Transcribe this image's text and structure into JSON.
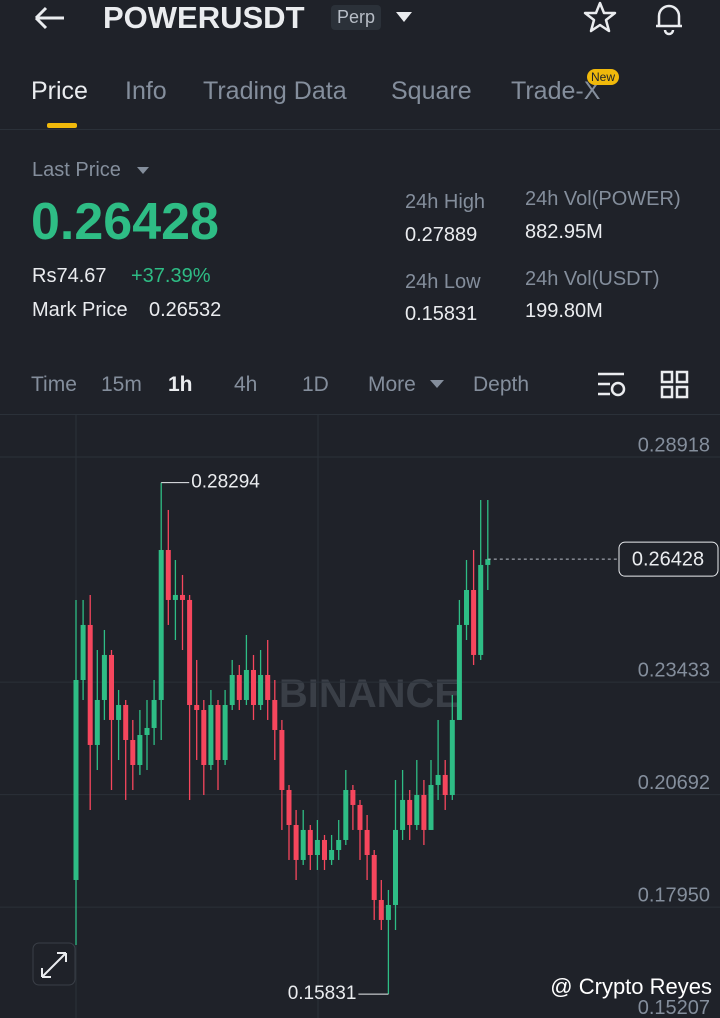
{
  "header": {
    "title": "POWERUSDT",
    "badge": "Perp"
  },
  "tabs": [
    "Price",
    "Info",
    "Trading Data",
    "Square",
    "Trade-X"
  ],
  "new_badge": "New",
  "stats": {
    "last_price_label": "Last Price",
    "last_price": "0.26428",
    "fiat_price": "Rs74.67",
    "change": "+37.39%",
    "mark_price_label": "Mark Price",
    "mark_price": "0.26532",
    "high_label": "24h High",
    "high": "0.27889",
    "low_label": "24h Low",
    "low": "0.15831",
    "vol_base_label": "24h Vol(POWER)",
    "vol_base": "882.95M",
    "vol_quote_label": "24h Vol(USDT)",
    "vol_quote": "199.80M"
  },
  "intervals": [
    "Time",
    "15m",
    "1h",
    "4h",
    "1D",
    "More",
    "Depth"
  ],
  "watermark": "BINANCE",
  "credit": "@ Crypto Reyes",
  "chart_data": {
    "type": "candlestick",
    "open": [
      0.18611,
      0.23484,
      0.24825,
      0.21901,
      0.22997,
      0.24094,
      0.2251,
      0.22875,
      0.22022,
      0.21413,
      0.22144,
      0.22315,
      0.22997,
      0.26652,
      0.25434,
      0.25556,
      0.25434,
      0.22875,
      0.22753,
      0.21413,
      0.22875,
      0.21535,
      0.22875,
      0.23606,
      0.22997,
      0.23728,
      0.22875,
      0.23606,
      0.22997,
      0.22266,
      0.20804,
      0.19951,
      0.19099,
      0.1983,
      0.1922,
      0.19586,
      0.19099,
      0.19342,
      0.19586,
      0.20804,
      0.20439,
      0.1983,
      0.1922,
      0.18124,
      0.17637,
      0.18002,
      0.1983,
      0.20561,
      0.19951,
      0.20682,
      0.1983,
      0.20926,
      0.2117,
      0.20682,
      0.2251,
      0.24825,
      0.25677,
      0.24094,
      0.26287
    ],
    "high": [
      0.25434,
      0.25434,
      0.25556,
      0.24215,
      0.24703,
      0.24215,
      0.23241,
      0.22997,
      0.2251,
      0.22753,
      0.22997,
      0.23484,
      0.28294,
      0.27627,
      0.26408,
      0.26043,
      0.25556,
      0.23972,
      0.22997,
      0.23241,
      0.22997,
      0.23241,
      0.23972,
      0.2385,
      0.24581,
      0.24094,
      0.24215,
      0.24459,
      0.23484,
      0.2251,
      0.20926,
      0.20317,
      0.20317,
      0.19951,
      0.20073,
      0.19708,
      0.19708,
      0.20073,
      0.21291,
      0.20926,
      0.20561,
      0.20195,
      0.19342,
      0.18611,
      0.18368,
      0.21048,
      0.21291,
      0.20804,
      0.21535,
      0.21048,
      0.21535,
      0.2251,
      0.21535,
      0.23119,
      0.25434,
      0.26408,
      0.26652,
      0.2787,
      0.2787
    ],
    "low": [
      0.17027,
      0.22997,
      0.20317,
      0.21291,
      0.2251,
      0.20804,
      0.21535,
      0.20561,
      0.20804,
      0.2117,
      0.21291,
      0.21901,
      0.22022,
      0.24825,
      0.24459,
      0.24215,
      0.20561,
      0.21535,
      0.20682,
      0.21291,
      0.20804,
      0.21413,
      0.22753,
      0.22753,
      0.22875,
      0.2251,
      0.22753,
      0.2251,
      0.21535,
      0.1983,
      0.19099,
      0.18611,
      0.18977,
      0.18855,
      0.18855,
      0.18855,
      0.18977,
      0.19099,
      0.19464,
      0.1983,
      0.19099,
      0.18611,
      0.17637,
      0.17393,
      0.15831,
      0.17393,
      0.19586,
      0.19586,
      0.1983,
      0.19464,
      0.1983,
      0.20561,
      0.20317,
      0.20561,
      0.2251,
      0.24459,
      0.2385,
      0.23972,
      0.25677
    ],
    "close": [
      0.23484,
      0.24825,
      0.21901,
      0.22997,
      0.24094,
      0.2251,
      0.22875,
      0.22022,
      0.21413,
      0.22144,
      0.22315,
      0.22997,
      0.26652,
      0.25434,
      0.25556,
      0.25434,
      0.22875,
      0.22753,
      0.21413,
      0.22875,
      0.21535,
      0.22875,
      0.23606,
      0.22997,
      0.23728,
      0.22875,
      0.23606,
      0.22997,
      0.22266,
      0.20804,
      0.19951,
      0.19099,
      0.1983,
      0.1922,
      0.19586,
      0.19099,
      0.19342,
      0.19586,
      0.20804,
      0.20439,
      0.1983,
      0.1922,
      0.18124,
      0.17637,
      0.18002,
      0.1983,
      0.20561,
      0.19951,
      0.20682,
      0.1983,
      0.20926,
      0.2117,
      0.20682,
      0.2251,
      0.24825,
      0.25677,
      0.24094,
      0.26287,
      0.26428
    ],
    "up_color": "#2ebd85",
    "down_color": "#f6465d",
    "ylim": [
      0.14956,
      0.29941
    ],
    "yticks": [
      0.28918,
      0.23433,
      0.20692,
      {
        "value": 0.1795,
        "label": "0.17950"
      },
      0.15207
    ],
    "high_annotation": 0.28294,
    "low_annotation": 0.15831,
    "last_price_tag": 0.26428
  }
}
